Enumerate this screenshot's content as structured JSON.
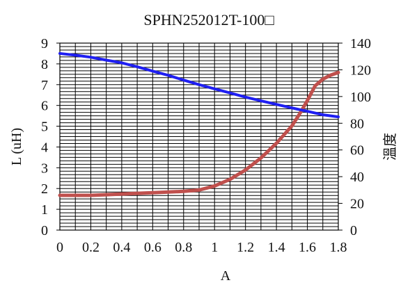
{
  "chart_data": {
    "type": "line",
    "title": "SPHN252012T-100□",
    "xlabel": "A",
    "ylabel_left": "L (uH)",
    "ylabel_right": "溫度",
    "xlim": [
      0,
      1.8
    ],
    "ylim_left": [
      0,
      9
    ],
    "ylim_right": [
      0,
      140
    ],
    "x_ticks": [
      "0",
      "0.2",
      "0.4",
      "0.6",
      "0.8",
      "1",
      "1.2",
      "1.4",
      "1.6",
      "1.8"
    ],
    "y_left_ticks": [
      "0",
      "1",
      "2",
      "3",
      "4",
      "5",
      "6",
      "7",
      "8",
      "9"
    ],
    "y_right_ticks": [
      "0",
      "20",
      "40",
      "60",
      "80",
      "100",
      "120",
      "140"
    ],
    "grid": true,
    "colors": {
      "inductance": "#1f1ff2",
      "temperature": "#c0504d",
      "grid": "#000000"
    },
    "series": [
      {
        "key": "inductance",
        "axis": "left",
        "x": [
          0,
          0.1,
          0.2,
          0.3,
          0.4,
          0.5,
          0.6,
          0.7,
          0.8,
          0.9,
          1.0,
          1.1,
          1.2,
          1.3,
          1.4,
          1.5,
          1.6,
          1.7,
          1.8
        ],
        "values": [
          8.5,
          8.42,
          8.32,
          8.18,
          8.05,
          7.86,
          7.65,
          7.45,
          7.22,
          7.0,
          6.8,
          6.6,
          6.4,
          6.22,
          6.05,
          5.88,
          5.72,
          5.55,
          5.45
        ]
      },
      {
        "key": "temperature",
        "axis": "right",
        "x": [
          0,
          0.1,
          0.2,
          0.3,
          0.4,
          0.5,
          0.6,
          0.7,
          0.8,
          0.9,
          1.0,
          1.1,
          1.2,
          1.3,
          1.4,
          1.5,
          1.55,
          1.6,
          1.65,
          1.7,
          1.75,
          1.8
        ],
        "values": [
          26,
          26,
          26,
          26.5,
          27,
          27.5,
          28,
          28.5,
          29,
          30,
          33,
          38,
          45,
          54,
          65,
          78,
          87,
          97,
          108,
          113,
          116,
          118
        ]
      }
    ]
  }
}
